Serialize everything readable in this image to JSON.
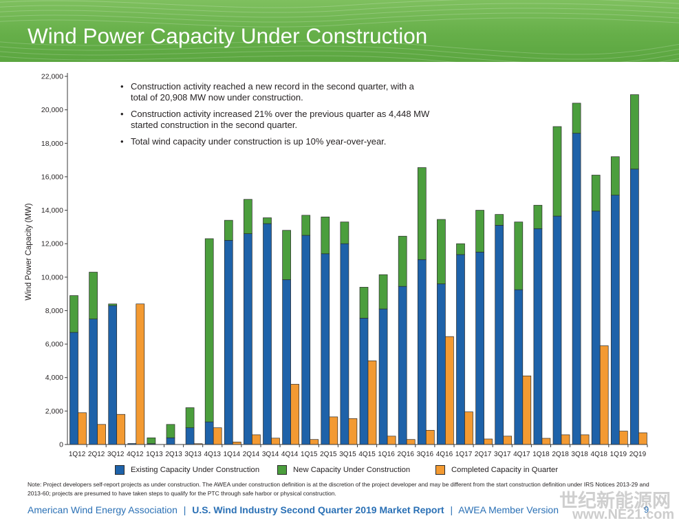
{
  "theme": {
    "header_green": "#64ae47",
    "footer_blue": "#2a70b5"
  },
  "chart_data": {
    "type": "bar",
    "title": "Wind Power Capacity Under Construction",
    "xlabel": "",
    "ylabel": "Wind Power Capacity (MW)",
    "ylim": [
      0,
      22000
    ],
    "yticks": [
      0,
      2000,
      4000,
      6000,
      8000,
      10000,
      12000,
      14000,
      16000,
      18000,
      20000,
      22000
    ],
    "ytick_labels": [
      "0",
      "2,000",
      "4,000",
      "6,000",
      "8,000",
      "10,000",
      "12,000",
      "14,000",
      "16,000",
      "18,000",
      "20,000",
      "22,000"
    ],
    "grid": false,
    "legend_position": "bottom",
    "categories": [
      "1Q12",
      "2Q12",
      "3Q12",
      "4Q12",
      "1Q13",
      "2Q13",
      "3Q13",
      "4Q13",
      "1Q14",
      "2Q14",
      "3Q14",
      "4Q14",
      "1Q15",
      "2Q15",
      "3Q15",
      "4Q15",
      "1Q16",
      "2Q16",
      "3Q16",
      "4Q16",
      "1Q17",
      "2Q17",
      "3Q17",
      "4Q17",
      "1Q18",
      "2Q18",
      "3Q18",
      "4Q18",
      "1Q19",
      "2Q19"
    ],
    "series": [
      {
        "name": "Existing Capacity Under Construction",
        "stack": "under_construction",
        "color": "#1e62a9",
        "values": [
          6700,
          7500,
          8300,
          60,
          50,
          400,
          1000,
          1350,
          12200,
          12600,
          13200,
          9850,
          12500,
          11400,
          12000,
          7550,
          8100,
          9450,
          11050,
          9600,
          11350,
          11500,
          13100,
          9250,
          12900,
          13650,
          18600,
          13950,
          14900,
          16460
        ]
      },
      {
        "name": "New Capacity Under Construction",
        "stack": "under_construction",
        "color": "#4b9e3d",
        "values": [
          2200,
          2800,
          100,
          0,
          350,
          800,
          1200,
          10950,
          1200,
          2050,
          350,
          2950,
          1200,
          2200,
          1300,
          1850,
          2050,
          3000,
          5500,
          3850,
          650,
          2500,
          650,
          4050,
          1400,
          5350,
          1800,
          2150,
          2300,
          4448
        ]
      },
      {
        "name": "Completed Capacity in Quarter",
        "stack": "completed",
        "color": "#f39a32",
        "values": [
          1900,
          1200,
          1800,
          8400,
          0,
          0,
          50,
          1000,
          150,
          580,
          380,
          3600,
          300,
          1650,
          1550,
          5000,
          500,
          300,
          850,
          6450,
          1950,
          330,
          500,
          4100,
          370,
          580,
          580,
          5900,
          800,
          700
        ]
      }
    ]
  },
  "highlights": [
    "Construction activity reached a new record in the second quarter, with a total of 20,908 MW now under construction.",
    "Construction activity increased 21% over the previous quarter as 4,448 MW started construction in the second quarter.",
    "Total wind capacity under construction is up 10% year-over-year."
  ],
  "note": "Note: Project developers self-report projects as under construction. The AWEA under construction definition is at the discretion of the project developer and may be different from the start construction definition under IRS Notices 2013-29 and 2013-60; projects are presumed to have taken steps to qualify for the PTC through safe harbor or physical construction.",
  "footer": {
    "organization": "American Wind Energy Association",
    "separator": "|",
    "report": "U.S. Wind Industry Second Quarter 2019 Market Report",
    "version": "AWEA Member Version",
    "page_number": "9"
  },
  "watermark": {
    "name": "世纪新能源网",
    "url": "www.NE21.com"
  }
}
